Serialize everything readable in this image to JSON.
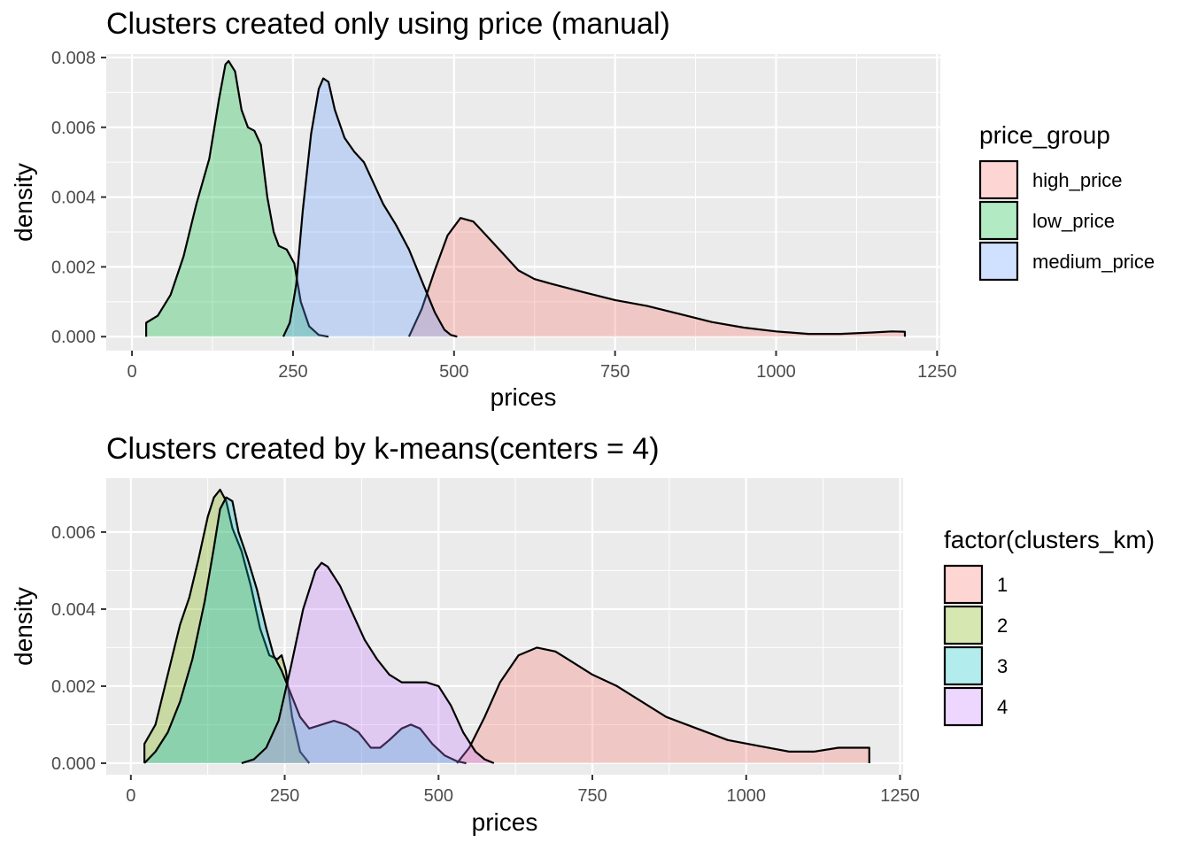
{
  "chart_data": [
    {
      "type": "area",
      "title": "Clusters created only using price (manual)",
      "xlabel": "prices",
      "ylabel": "density",
      "xlim": [
        -40,
        1255
      ],
      "ylim": [
        -0.0004,
        0.0081
      ],
      "x_ticks": [
        0,
        250,
        500,
        750,
        1000,
        1250
      ],
      "x_tick_labels": [
        "0",
        "250",
        "500",
        "750",
        "1000",
        "1250"
      ],
      "y_ticks": [
        0,
        0.002,
        0.004,
        0.006,
        0.008
      ],
      "y_tick_labels": [
        "0.000",
        "0.002",
        "0.004",
        "0.006",
        "0.008"
      ],
      "grid": true,
      "legend": {
        "title": "price_group",
        "position": "right",
        "entries": [
          "high_price",
          "low_price",
          "medium_price"
        ]
      },
      "series": [
        {
          "name": "high_price",
          "color": "#F8766D",
          "points": [
            [
              430,
              0
            ],
            [
              450,
              0.0008
            ],
            [
              470,
              0.0019
            ],
            [
              490,
              0.0029
            ],
            [
              510,
              0.0034
            ],
            [
              530,
              0.0033
            ],
            [
              550,
              0.0029
            ],
            [
              575,
              0.0024
            ],
            [
              600,
              0.0019
            ],
            [
              625,
              0.00165
            ],
            [
              650,
              0.00152
            ],
            [
              700,
              0.00128
            ],
            [
              750,
              0.00105
            ],
            [
              800,
              0.00088
            ],
            [
              850,
              0.00065
            ],
            [
              900,
              0.00042
            ],
            [
              950,
              0.00026
            ],
            [
              1000,
              0.00015
            ],
            [
              1050,
              8e-05
            ],
            [
              1100,
              8e-05
            ],
            [
              1150,
              0.00012
            ],
            [
              1180,
              0.00015
            ],
            [
              1200,
              0.00014
            ],
            [
              1200,
              0
            ]
          ]
        },
        {
          "name": "low_price",
          "color": "#00BA38",
          "points": [
            [
              22,
              0
            ],
            [
              22,
              0.0004
            ],
            [
              40,
              0.0006
            ],
            [
              60,
              0.0012
            ],
            [
              80,
              0.0023
            ],
            [
              100,
              0.0038
            ],
            [
              120,
              0.0051
            ],
            [
              135,
              0.0068
            ],
            [
              145,
              0.0078
            ],
            [
              150,
              0.0079
            ],
            [
              160,
              0.0076
            ],
            [
              170,
              0.0065
            ],
            [
              180,
              0.006
            ],
            [
              190,
              0.0059
            ],
            [
              200,
              0.0055
            ],
            [
              210,
              0.004
            ],
            [
              220,
              0.003
            ],
            [
              228,
              0.0026
            ],
            [
              240,
              0.0025
            ],
            [
              252,
              0.0021
            ],
            [
              262,
              0.001
            ],
            [
              275,
              0.0003
            ],
            [
              290,
              5e-05
            ],
            [
              305,
              0
            ]
          ]
        },
        {
          "name": "medium_price",
          "color": "#619CFF",
          "points": [
            [
              235,
              0
            ],
            [
              245,
              0.0004
            ],
            [
              255,
              0.0015
            ],
            [
              265,
              0.0036
            ],
            [
              278,
              0.0058
            ],
            [
              290,
              0.0071
            ],
            [
              297,
              0.0074
            ],
            [
              305,
              0.0073
            ],
            [
              315,
              0.0065
            ],
            [
              330,
              0.0057
            ],
            [
              345,
              0.0053
            ],
            [
              360,
              0.005
            ],
            [
              375,
              0.0044
            ],
            [
              390,
              0.0038
            ],
            [
              410,
              0.0032
            ],
            [
              430,
              0.0025
            ],
            [
              450,
              0.0016
            ],
            [
              470,
              0.0007
            ],
            [
              485,
              0.0002
            ],
            [
              495,
              5e-05
            ],
            [
              505,
              0
            ]
          ]
        }
      ]
    },
    {
      "type": "area",
      "title": "Clusters created by k-means(centers = 4)",
      "xlabel": "prices",
      "ylabel": "density",
      "xlim": [
        -40,
        1255
      ],
      "ylim": [
        -0.0003,
        0.0074
      ],
      "x_ticks": [
        0,
        250,
        500,
        750,
        1000,
        1250
      ],
      "x_tick_labels": [
        "0",
        "250",
        "500",
        "750",
        "1000",
        "1250"
      ],
      "y_ticks": [
        0,
        0.002,
        0.004,
        0.006
      ],
      "y_tick_labels": [
        "0.000",
        "0.002",
        "0.004",
        "0.006"
      ],
      "grid": true,
      "legend": {
        "title": "factor(clusters_km)",
        "position": "right",
        "entries": [
          "1",
          "2",
          "3",
          "4"
        ]
      },
      "series": [
        {
          "name": "1",
          "color": "#F8766D",
          "points": [
            [
              530,
              0
            ],
            [
              550,
              0.0004
            ],
            [
              575,
              0.0012
            ],
            [
              600,
              0.0021
            ],
            [
              630,
              0.0028
            ],
            [
              660,
              0.003
            ],
            [
              690,
              0.0029
            ],
            [
              720,
              0.0026
            ],
            [
              750,
              0.0023
            ],
            [
              790,
              0.002
            ],
            [
              830,
              0.0016
            ],
            [
              870,
              0.0012
            ],
            [
              920,
              0.0009
            ],
            [
              970,
              0.0006
            ],
            [
              1020,
              0.00045
            ],
            [
              1070,
              0.0003
            ],
            [
              1110,
              0.0003
            ],
            [
              1150,
              0.0004
            ],
            [
              1180,
              0.0004
            ],
            [
              1200,
              0.0004
            ],
            [
              1200,
              0
            ]
          ]
        },
        {
          "name": "2",
          "color": "#7CAE00",
          "points": [
            [
              22,
              0
            ],
            [
              22,
              0.0005
            ],
            [
              40,
              0.001
            ],
            [
              60,
              0.0023
            ],
            [
              80,
              0.0036
            ],
            [
              95,
              0.0043
            ],
            [
              110,
              0.0053
            ],
            [
              125,
              0.0064
            ],
            [
              135,
              0.0069
            ],
            [
              145,
              0.0071
            ],
            [
              155,
              0.0068
            ],
            [
              165,
              0.0061
            ],
            [
              180,
              0.0055
            ],
            [
              195,
              0.0046
            ],
            [
              210,
              0.0035
            ],
            [
              225,
              0.0028
            ],
            [
              238,
              0.0027
            ],
            [
              245,
              0.0028
            ],
            [
              252,
              0.0024
            ],
            [
              262,
              0.0012
            ],
            [
              275,
              0.0003
            ],
            [
              290,
              0
            ]
          ]
        },
        {
          "name": "3",
          "color": "#00BFC4",
          "points": [
            [
              22,
              0
            ],
            [
              40,
              0.0003
            ],
            [
              60,
              0.0008
            ],
            [
              80,
              0.0016
            ],
            [
              100,
              0.0027
            ],
            [
              120,
              0.0042
            ],
            [
              135,
              0.0056
            ],
            [
              145,
              0.0066
            ],
            [
              155,
              0.0069
            ],
            [
              165,
              0.0068
            ],
            [
              175,
              0.006
            ],
            [
              190,
              0.0053
            ],
            [
              205,
              0.0045
            ],
            [
              220,
              0.0035
            ],
            [
              232,
              0.0028
            ],
            [
              245,
              0.0024
            ],
            [
              260,
              0.0018
            ],
            [
              275,
              0.0012
            ],
            [
              290,
              0.0009
            ],
            [
              310,
              0.001
            ],
            [
              330,
              0.0011
            ],
            [
              350,
              0.001
            ],
            [
              370,
              0.0008
            ],
            [
              390,
              0.0004
            ],
            [
              405,
              0.0004
            ],
            [
              420,
              0.0006
            ],
            [
              440,
              0.0009
            ],
            [
              455,
              0.001
            ],
            [
              470,
              0.0009
            ],
            [
              490,
              0.0005
            ],
            [
              510,
              0.0002
            ],
            [
              530,
              5e-05
            ],
            [
              545,
              0
            ]
          ]
        },
        {
          "name": "4",
          "color": "#C77CFF",
          "points": [
            [
              180,
              0
            ],
            [
              200,
              0.0001
            ],
            [
              220,
              0.0004
            ],
            [
              240,
              0.0011
            ],
            [
              260,
              0.0025
            ],
            [
              280,
              0.004
            ],
            [
              300,
              0.005
            ],
            [
              310,
              0.0052
            ],
            [
              320,
              0.0051
            ],
            [
              340,
              0.0046
            ],
            [
              360,
              0.0039
            ],
            [
              380,
              0.0032
            ],
            [
              400,
              0.0027
            ],
            [
              420,
              0.0023
            ],
            [
              440,
              0.0021
            ],
            [
              460,
              0.0021
            ],
            [
              480,
              0.0021
            ],
            [
              500,
              0.002
            ],
            [
              520,
              0.0015
            ],
            [
              540,
              0.0008
            ],
            [
              560,
              0.0003
            ],
            [
              575,
              0.0001
            ],
            [
              590,
              0
            ]
          ]
        }
      ]
    }
  ]
}
